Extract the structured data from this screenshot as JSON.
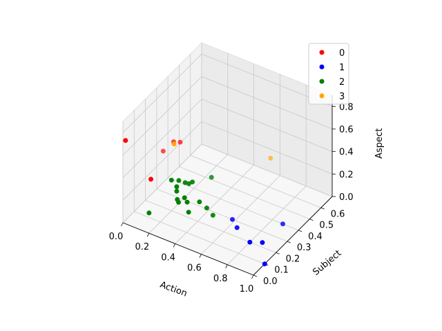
{
  "chart_data": {
    "type": "scatter",
    "projection": "3d",
    "xlabel": "Action",
    "ylabel": "Subject",
    "zlabel": "Aspect",
    "xlim": [
      0,
      1
    ],
    "ylim": [
      0,
      0.7
    ],
    "zlim": [
      0,
      0.9
    ],
    "xticks": [
      "0.0",
      "0.2",
      "0.4",
      "0.6",
      "0.8",
      "1.0"
    ],
    "yticks": [
      "0.0",
      "0.1",
      "0.2",
      "0.3",
      "0.4",
      "0.5",
      "0.6"
    ],
    "zticks": [
      "0.0",
      "0.2",
      "0.4",
      "0.6",
      "0.8"
    ],
    "grid": true,
    "legend_position": "top-right",
    "series": [
      {
        "name": "0",
        "color": "#ff0000",
        "points": [
          {
            "x": 0.02,
            "y": 0.0,
            "z": 0.74
          },
          {
            "x": 0.05,
            "y": 0.3,
            "z": 0.36
          },
          {
            "x": 0.18,
            "y": 0.04,
            "z": 0.43
          },
          {
            "x": 0.13,
            "y": 0.3,
            "z": 0.48
          },
          {
            "x": 0.18,
            "y": 0.3,
            "z": 0.5
          }
        ]
      },
      {
        "name": "1",
        "color": "#0000ff",
        "points": [
          {
            "x": 0.58,
            "y": 0.3,
            "z": 0.0
          },
          {
            "x": 0.65,
            "y": 0.26,
            "z": 0.0
          },
          {
            "x": 0.88,
            "y": 0.4,
            "z": 0.0
          },
          {
            "x": 0.8,
            "y": 0.2,
            "z": 0.0
          },
          {
            "x": 0.87,
            "y": 0.23,
            "z": 0.0
          },
          {
            "x": 1.0,
            "y": 0.1,
            "z": 0.0
          }
        ]
      },
      {
        "name": "2",
        "color": "#008000",
        "points": [
          {
            "x": 0.3,
            "y": 0.13,
            "z": 0.33
          },
          {
            "x": 0.26,
            "y": 0.13,
            "z": 0.37
          },
          {
            "x": 0.29,
            "y": 0.16,
            "z": 0.35
          },
          {
            "x": 0.33,
            "y": 0.17,
            "z": 0.34
          },
          {
            "x": 0.35,
            "y": 0.18,
            "z": 0.33
          },
          {
            "x": 0.36,
            "y": 0.2,
            "z": 0.33
          },
          {
            "x": 0.3,
            "y": 0.13,
            "z": 0.29
          },
          {
            "x": 0.36,
            "y": 0.13,
            "z": 0.26
          },
          {
            "x": 0.38,
            "y": 0.13,
            "z": 0.23
          },
          {
            "x": 0.44,
            "y": 0.17,
            "z": 0.22
          },
          {
            "x": 0.33,
            "y": 0.1,
            "z": 0.26
          },
          {
            "x": 0.34,
            "y": 0.1,
            "z": 0.24
          },
          {
            "x": 0.4,
            "y": 0.12,
            "z": 0.16
          },
          {
            "x": 0.47,
            "y": 0.2,
            "z": 0.15
          },
          {
            "x": 0.5,
            "y": 0.22,
            "z": 0.08
          },
          {
            "x": 0.2,
            "y": 0.0,
            "z": 0.18
          },
          {
            "x": 0.42,
            "y": 0.3,
            "z": 0.3
          }
        ]
      },
      {
        "name": "3",
        "color": "#ffa500",
        "points": [
          {
            "x": 0.28,
            "y": 0.13,
            "z": 0.7
          },
          {
            "x": 0.7,
            "y": 0.5,
            "z": 0.4
          }
        ]
      }
    ]
  }
}
